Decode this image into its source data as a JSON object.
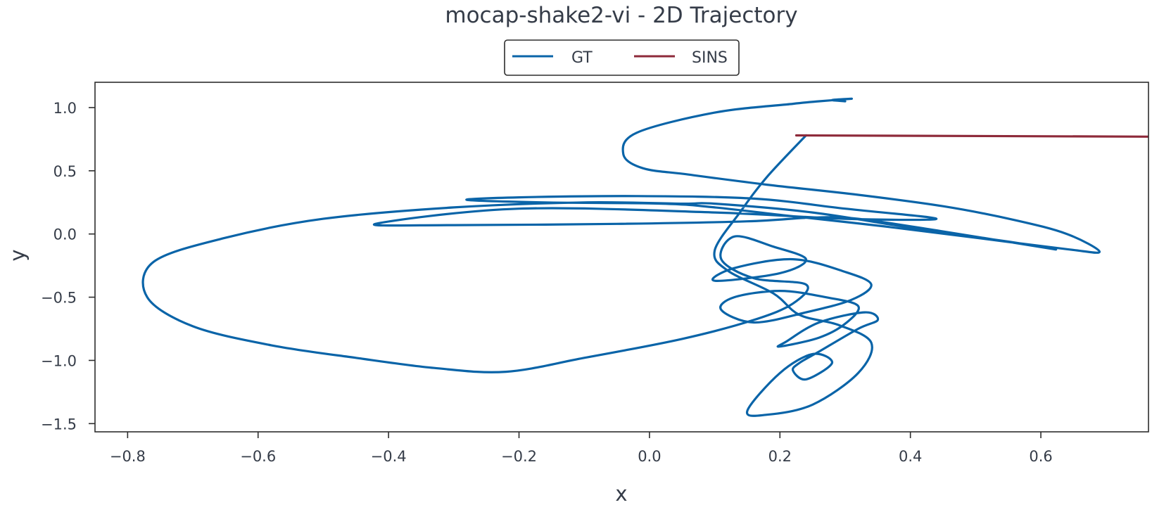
{
  "chart_data": {
    "type": "line",
    "title": "mocap-shake2-vi - 2D Trajectory",
    "xlabel": "x",
    "ylabel": "y",
    "xlim": [
      -0.85,
      0.765
    ],
    "ylim": [
      -1.565,
      1.2
    ],
    "xticks": [
      {
        "value": -0.8,
        "label": "−0.8"
      },
      {
        "value": -0.6,
        "label": "−0.6"
      },
      {
        "value": -0.4,
        "label": "−0.4"
      },
      {
        "value": -0.2,
        "label": "−0.2"
      },
      {
        "value": 0.0,
        "label": "0.0"
      },
      {
        "value": 0.2,
        "label": "0.2"
      },
      {
        "value": 0.4,
        "label": "0.4"
      },
      {
        "value": 0.6,
        "label": "0.6"
      }
    ],
    "yticks": [
      {
        "value": 1.0,
        "label": "1.0"
      },
      {
        "value": 0.5,
        "label": "0.5"
      },
      {
        "value": 0.0,
        "label": "0.0"
      },
      {
        "value": -0.5,
        "label": "−0.5"
      },
      {
        "value": -1.0,
        "label": "−1.0"
      },
      {
        "value": -1.5,
        "label": "−1.5"
      }
    ],
    "grid": false,
    "legend": {
      "placement": "top-center, outside plot",
      "columns": 2
    },
    "series": [
      {
        "name": "GT",
        "color": "#0a64a8",
        "x": [
          0.3,
          0.28,
          0.31,
          0.26,
          0.22,
          0.1,
          -0.02,
          -0.04,
          -0.01,
          0.06,
          0.18,
          0.32,
          0.45,
          0.56,
          0.64,
          0.69,
          0.64,
          0.5,
          0.36,
          0.22,
          0.1,
          0.02,
          -0.16,
          -0.28,
          -0.2,
          -0.02,
          0.16,
          0.3,
          0.44,
          0.3,
          0.1,
          -0.2,
          -0.42,
          -0.3,
          -0.05,
          0.15,
          0.25,
          0.32,
          0.45,
          0.62,
          0.55,
          0.4,
          0.25,
          0.1,
          0.05,
          -0.1,
          -0.3,
          -0.5,
          -0.65,
          -0.76,
          -0.77,
          -0.7,
          -0.58,
          -0.45,
          -0.33,
          -0.22,
          -0.1,
          0.05,
          0.16,
          0.22,
          0.24,
          0.16,
          0.11,
          0.13,
          0.19,
          0.24,
          0.2,
          0.1,
          0.13,
          0.22,
          0.3,
          0.34,
          0.31,
          0.24,
          0.16,
          0.11,
          0.13,
          0.2,
          0.27,
          0.32,
          0.3,
          0.26,
          0.2,
          0.21,
          0.26,
          0.33,
          0.35,
          0.32,
          0.26,
          0.23,
          0.22,
          0.24,
          0.28,
          0.25,
          0.2,
          0.15,
          0.18,
          0.25,
          0.32,
          0.34,
          0.29,
          0.23,
          0.19,
          0.12,
          0.1,
          0.14,
          0.18,
          0.24
        ],
        "y": [
          1.05,
          1.06,
          1.07,
          1.05,
          1.03,
          0.96,
          0.8,
          0.63,
          0.52,
          0.47,
          0.39,
          0.31,
          0.22,
          0.11,
          0.0,
          -0.14,
          -0.12,
          -0.03,
          0.06,
          0.14,
          0.21,
          0.24,
          0.25,
          0.27,
          0.29,
          0.3,
          0.28,
          0.2,
          0.12,
          0.12,
          0.17,
          0.2,
          0.08,
          0.07,
          0.08,
          0.1,
          0.13,
          0.12,
          0.02,
          -0.12,
          -0.06,
          0.05,
          0.17,
          0.24,
          0.24,
          0.25,
          0.21,
          0.12,
          -0.03,
          -0.22,
          -0.5,
          -0.73,
          -0.88,
          -0.98,
          -1.06,
          -1.09,
          -0.98,
          -0.83,
          -0.68,
          -0.55,
          -0.4,
          -0.35,
          -0.2,
          -0.02,
          -0.1,
          -0.2,
          -0.31,
          -0.37,
          -0.27,
          -0.2,
          -0.3,
          -0.4,
          -0.52,
          -0.62,
          -0.7,
          -0.6,
          -0.5,
          -0.45,
          -0.5,
          -0.57,
          -0.71,
          -0.82,
          -0.89,
          -0.85,
          -0.7,
          -0.62,
          -0.68,
          -0.75,
          -0.93,
          -1.02,
          -1.08,
          -1.15,
          -1.02,
          -0.95,
          -1.1,
          -1.4,
          -1.43,
          -1.35,
          -1.1,
          -0.86,
          -0.72,
          -0.64,
          -0.47,
          -0.29,
          -0.13,
          0.18,
          0.45,
          0.78
        ]
      },
      {
        "name": "SINS",
        "color": "#8e2a3a",
        "x": [
          0.225,
          0.765
        ],
        "y": [
          0.78,
          0.77
        ]
      }
    ]
  }
}
